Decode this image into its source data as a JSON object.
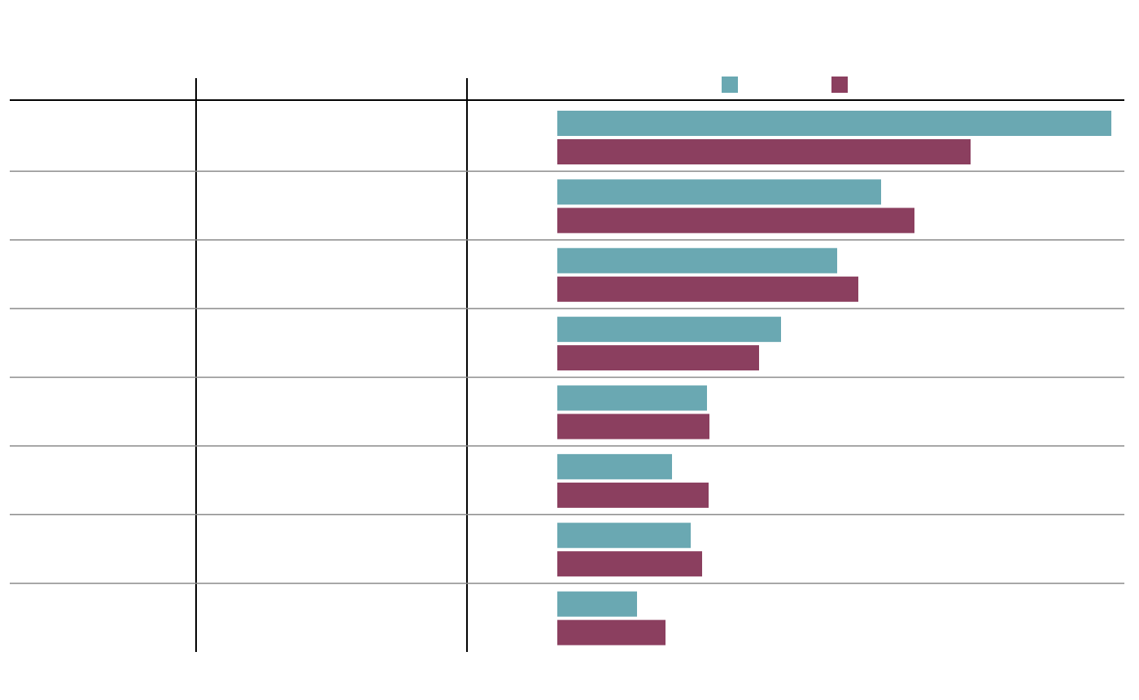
{
  "chart_data": {
    "type": "bar",
    "orientation": "horizontal",
    "xlim": [
      0,
      700
    ],
    "series": [
      {
        "color": "#6aa8b2",
        "values": [
          681,
          398,
          344,
          275,
          184,
          141,
          164,
          98
        ]
      },
      {
        "color": "#8b3f5f",
        "values": [
          508,
          439,
          370,
          248,
          187,
          186,
          178,
          133
        ]
      }
    ]
  }
}
